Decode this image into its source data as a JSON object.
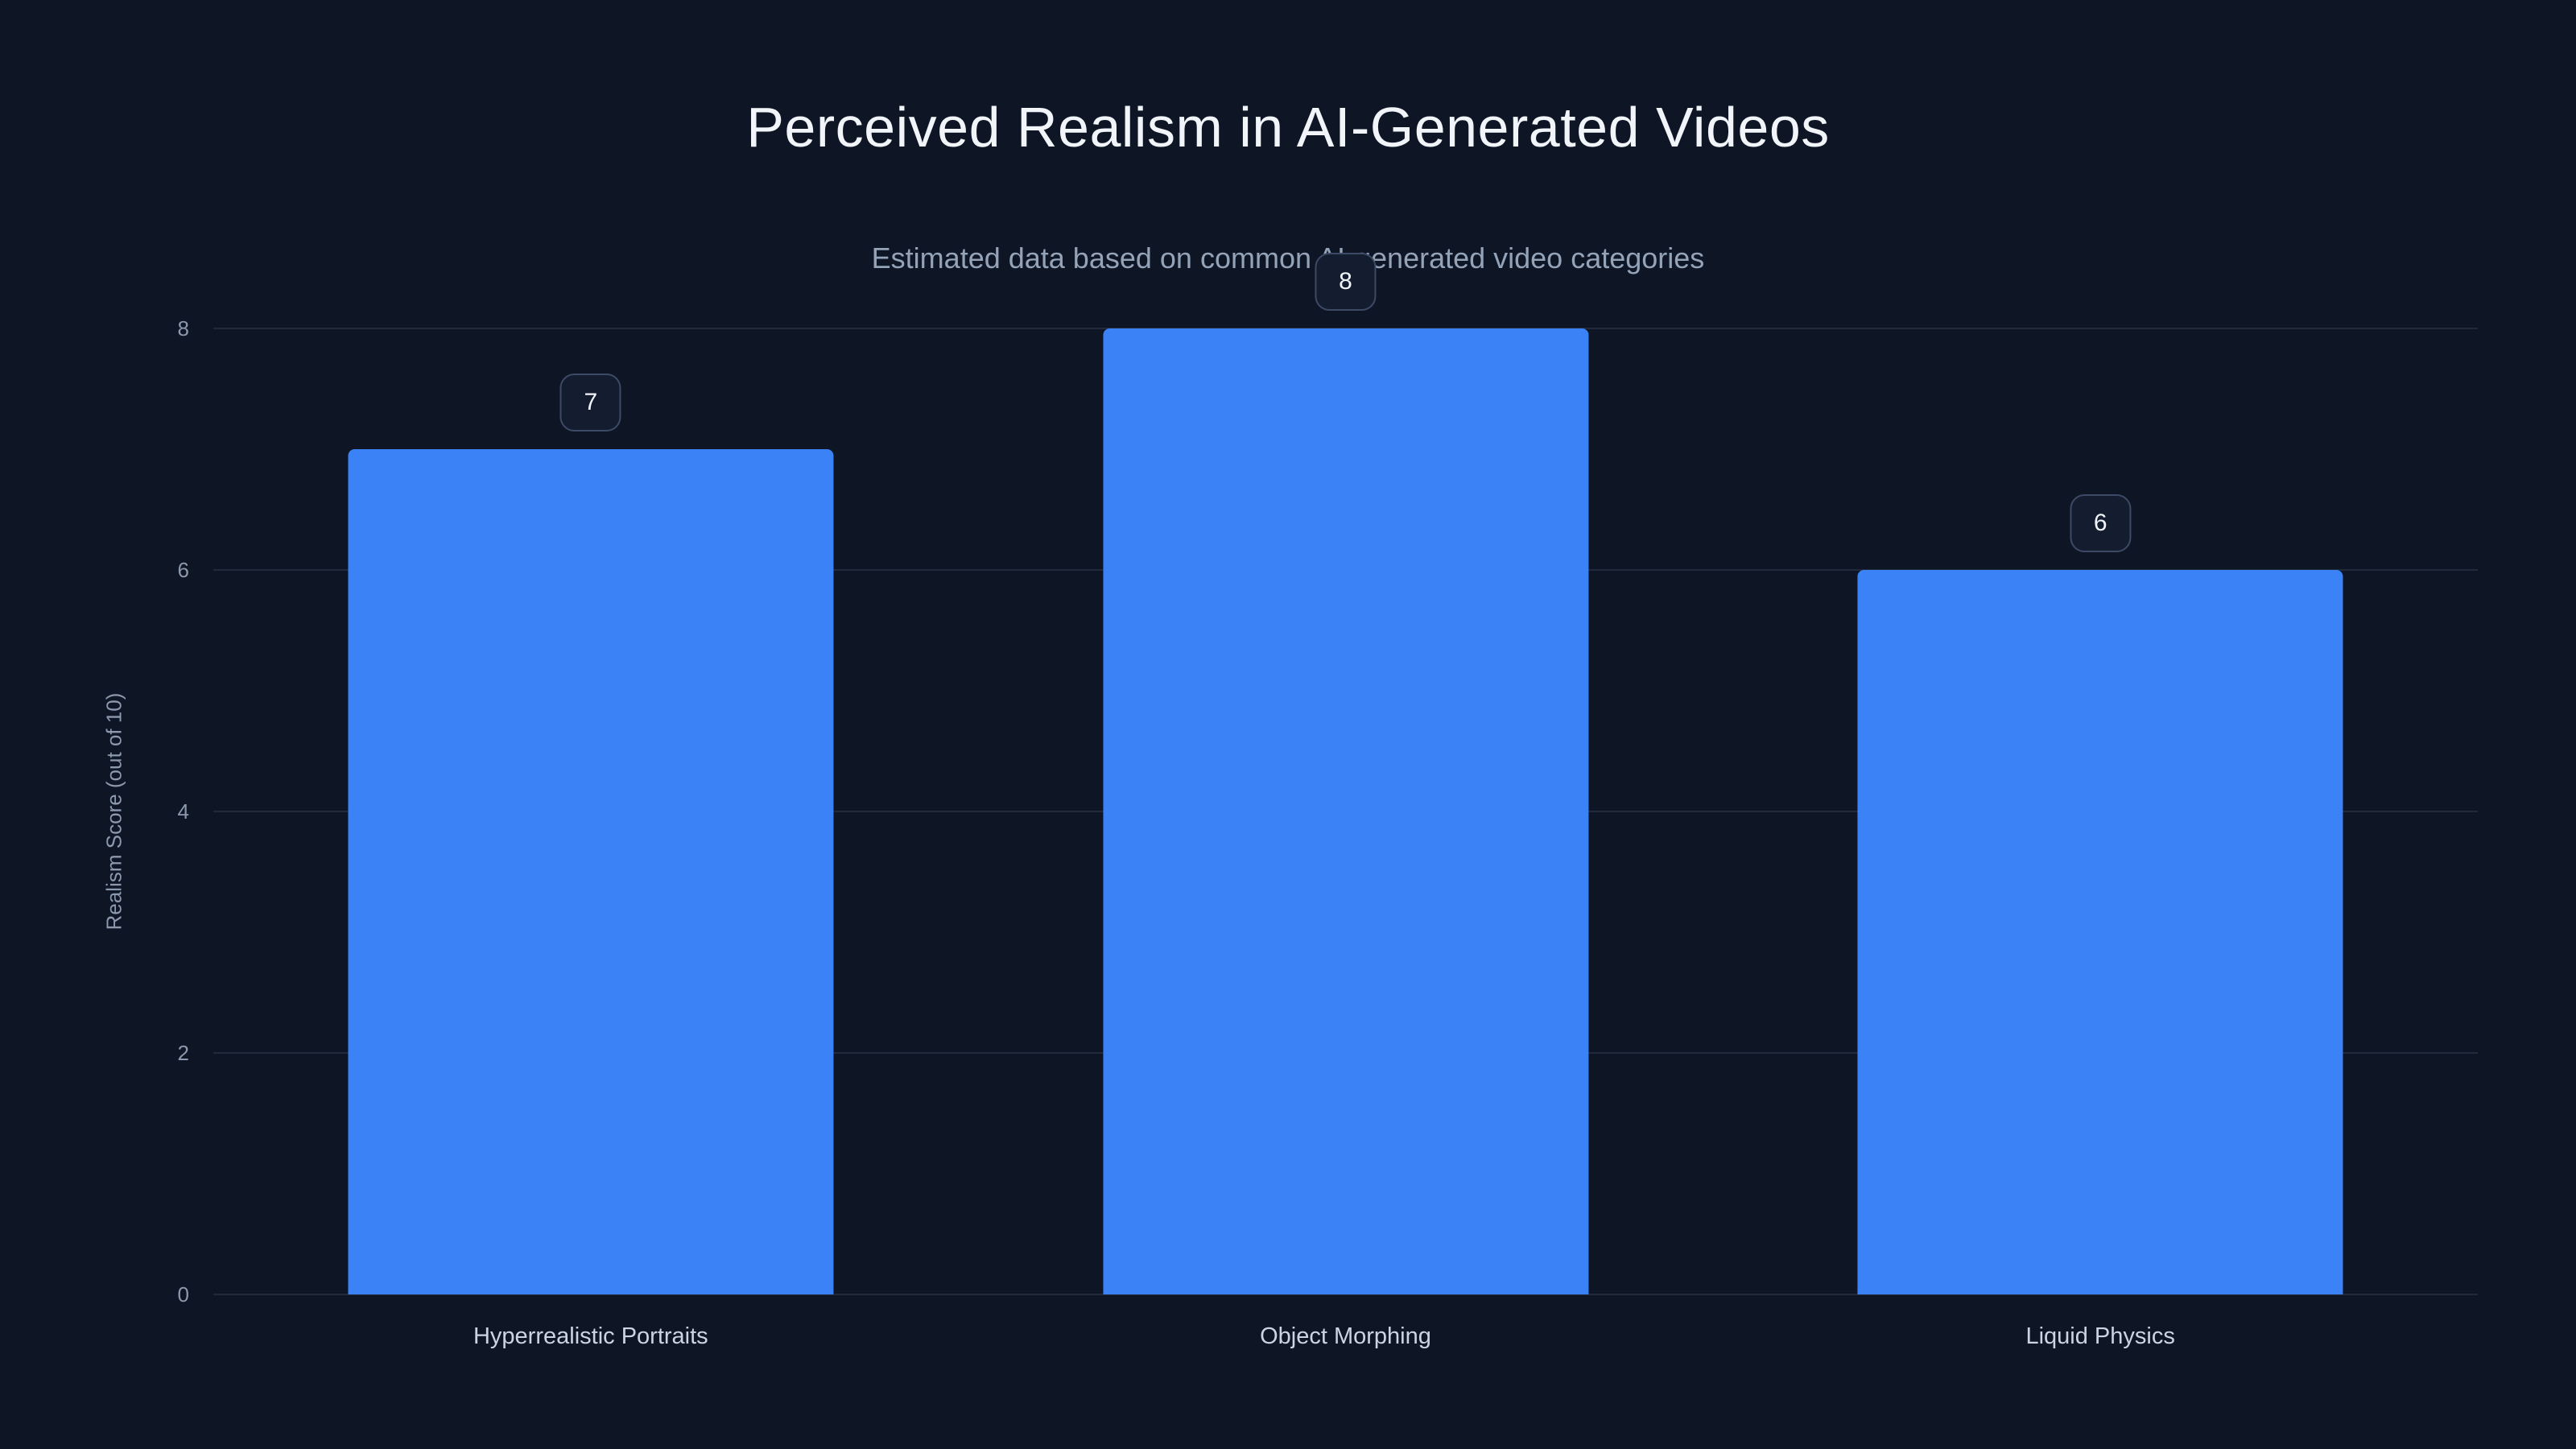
{
  "page": {
    "background_color": "#0e1626",
    "accent_color": "#3b82f6",
    "title": "Perceived Realism in AI-Generated Videos",
    "subtitle": "Estimated data based on common AI-generated video categories"
  },
  "chart_data": {
    "type": "bar",
    "title": "Perceived Realism in AI-Generated Videos",
    "subtitle": "Estimated data based on common AI-generated video categories",
    "categories": [
      "Hyperrealistic Portraits",
      "Object Morphing",
      "Liquid Physics"
    ],
    "values": [
      7,
      8,
      6
    ],
    "value_labels": [
      "7",
      "8",
      "6"
    ],
    "xlabel": "",
    "ylabel": "Realism Score (out of 10)",
    "ylim": [
      0,
      8
    ],
    "yticks": [
      0,
      2,
      4,
      6,
      8
    ],
    "grid": true,
    "legend": false,
    "bar_color": "#3b82f6",
    "value_badge_border_color": "#3d4a66",
    "value_badge_background": "#141d30"
  }
}
